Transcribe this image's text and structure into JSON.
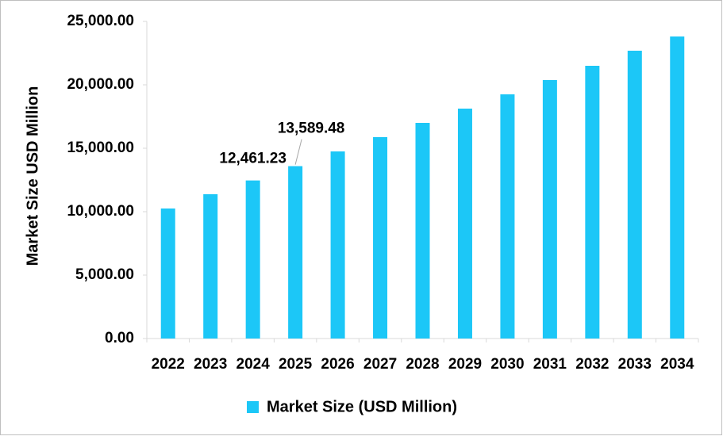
{
  "chart_data": {
    "type": "bar",
    "y_label": "Market Size USD Million",
    "categories": [
      "2022",
      "2023",
      "2024",
      "2025",
      "2026",
      "2027",
      "2028",
      "2029",
      "2030",
      "2031",
      "2032",
      "2033",
      "2034"
    ],
    "series": [
      {
        "name": "Market Size (USD Million)",
        "color": "#1cc7f7",
        "values": [
          10250,
          11375,
          12461.23,
          13589.48,
          14750,
          15875,
          17000,
          18125,
          19250,
          20375,
          21500,
          22690,
          23810
        ],
        "value_labels": [
          null,
          null,
          "12,461.23",
          "13,589.48",
          null,
          null,
          null,
          null,
          null,
          null,
          null,
          null,
          null
        ]
      }
    ],
    "ylim": [
      0,
      25000
    ],
    "yticks": [
      {
        "value": 0,
        "label": "0.00"
      },
      {
        "value": 5000,
        "label": "5,000.00"
      },
      {
        "value": 10000,
        "label": "10,000.00"
      },
      {
        "value": 15000,
        "label": "15,000.00"
      },
      {
        "value": 20000,
        "label": "20,000.00"
      },
      {
        "value": 25000,
        "label": "25,000.00"
      }
    ],
    "grid": false,
    "legend": "bottom"
  }
}
